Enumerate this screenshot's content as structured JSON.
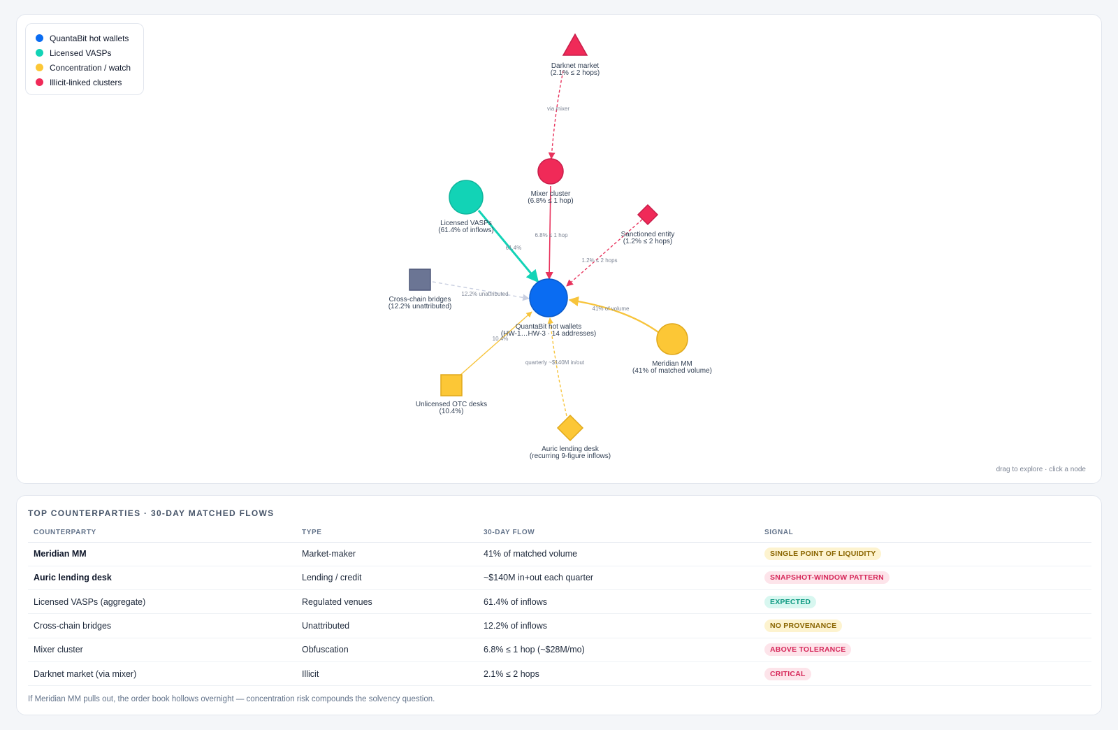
{
  "legend": [
    {
      "label": "QuantaBit hot wallets",
      "color": "#0a6cf2"
    },
    {
      "label": "Licensed VASPs",
      "color": "#12d3b6"
    },
    {
      "label": "Concentration / watch",
      "color": "#fcc736"
    },
    {
      "label": "Illicit-linked clusters",
      "color": "#f02a58"
    }
  ],
  "graph": {
    "hint": "drag to explore · click a node",
    "nodes": {
      "hub": {
        "line1": "QuantaBit hot wallets",
        "line2": "(HW-1…HW-3 · 14 addresses)"
      },
      "darknet": {
        "line1": "Darknet market",
        "line2": "(2.1% ≤ 2 hops)"
      },
      "mixer": {
        "line1": "Mixer cluster",
        "line2": "(6.8% ≤ 1 hop)"
      },
      "vasps": {
        "line1": "Licensed VASPs",
        "line2": "(61.4% of inflows)"
      },
      "sanctioned": {
        "line1": "Sanctioned entity",
        "line2": "(1.2% ≤ 2 hops)"
      },
      "bridges": {
        "line1": "Cross-chain bridges",
        "line2": "(12.2% unattributed)"
      },
      "meridian": {
        "line1": "Meridian MM",
        "line2": "(41% of matched volume)"
      },
      "otc": {
        "line1": "Unlicensed OTC desks",
        "line2": "(10.4%)"
      },
      "auric": {
        "line1": "Auric lending desk",
        "line2": "(recurring 9-figure inflows)"
      }
    },
    "edges": {
      "darknet_mixer": "via mixer",
      "mixer_hub": "6.8% ≤ 1 hop",
      "vasps_hub": "61.4%",
      "sanctioned_hub": "1.2% ≤ 2 hops",
      "bridges_hub": "12.2% unattributed",
      "meridian_hub": "41% of volume",
      "otc_hub": "10.4%",
      "auric_hub": "quarterly ~$140M in/out"
    }
  },
  "table": {
    "title": "TOP COUNTERPARTIES · 30-DAY MATCHED FLOWS",
    "headers": [
      "COUNTERPARTY",
      "TYPE",
      "30-DAY FLOW",
      "SIGNAL"
    ],
    "rows": [
      {
        "counterparty": "Meridian MM",
        "type": "Market-maker",
        "flow": "41% of matched volume",
        "signal": "SINGLE POINT OF LIQUIDITY"
      },
      {
        "counterparty": "Auric lending desk",
        "type": "Lending / credit",
        "flow": "~$140M in+out each quarter",
        "signal": "SNAPSHOT-WINDOW PATTERN"
      },
      {
        "counterparty": "Licensed VASPs (aggregate)",
        "type": "Regulated venues",
        "flow": "61.4% of inflows",
        "signal": "EXPECTED"
      },
      {
        "counterparty": "Cross-chain bridges",
        "type": "Unattributed",
        "flow": "12.2% of inflows",
        "signal": "NO PROVENANCE"
      },
      {
        "counterparty": "Mixer cluster",
        "type": "Obfuscation",
        "flow": "6.8% ≤ 1 hop (~$28M/mo)",
        "signal": "ABOVE TOLERANCE"
      },
      {
        "counterparty": "Darknet market (via mixer)",
        "type": "Illicit",
        "flow": "2.1% ≤ 2 hops",
        "signal": "CRITICAL"
      }
    ],
    "footnote": "If Meridian MM pulls out, the order book hollows overnight — concentration risk compounds the solvency question."
  }
}
